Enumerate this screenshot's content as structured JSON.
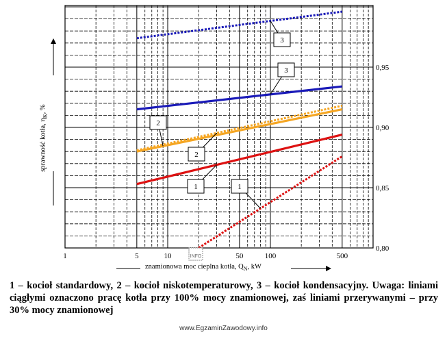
{
  "chart_data": {
    "type": "line",
    "x_scale": "log",
    "xlim": [
      1,
      1000
    ],
    "ylim": [
      0.8,
      0.98
    ],
    "x_tick_labels": [
      "1",
      "5",
      "10",
      "20",
      "50",
      "100",
      "500"
    ],
    "y_tick_labels": [
      "0,80",
      "0,85",
      "0,90",
      "0,95"
    ],
    "xlabel": "znamionowa moc cieplna kotła, Q",
    "xlabel_sub": "N",
    "xlabel_unit": ", kW",
    "ylabel": "sprawność kotła, η",
    "ylabel_sub": "K",
    "ylabel_unit": ", %",
    "grid": true,
    "series": [
      {
        "name": "1",
        "style": "solid",
        "color": "#dd1111",
        "x": [
          5,
          500
        ],
        "y": [
          0.853,
          0.894
        ]
      },
      {
        "name": "1",
        "style": "dotted",
        "color": "#dd1111",
        "x": [
          20,
          500
        ],
        "y": [
          0.8,
          0.876
        ]
      },
      {
        "name": "2",
        "style": "solid",
        "color": "#f5a623",
        "x": [
          5,
          500
        ],
        "y": [
          0.88,
          0.915
        ]
      },
      {
        "name": "2",
        "style": "dotted",
        "color": "#f5a623",
        "x": [
          5,
          500
        ],
        "y": [
          0.881,
          0.918
        ]
      },
      {
        "name": "3",
        "style": "solid",
        "color": "#1a1ab8",
        "x": [
          5,
          500
        ],
        "y": [
          0.915,
          0.934
        ]
      },
      {
        "name": "3",
        "style": "dotted",
        "color": "#1a1ab8",
        "x": [
          5,
          500
        ],
        "y": [
          0.974,
          0.996
        ]
      }
    ],
    "annotations": [
      {
        "text": "3",
        "box": [
          412,
          58
        ],
        "to": [
          5,
          500
        ]
      },
      {
        "text": "3",
        "box": [
          418,
          102
        ],
        "to": [
          4,
          5
        ]
      },
      {
        "text": "2",
        "box": [
          231,
          179
        ],
        "to": [
          2,
          3
        ]
      },
      {
        "text": "2",
        "box": [
          287,
          225
        ],
        "to": [
          2,
          3
        ]
      },
      {
        "text": "1",
        "box": [
          286,
          272
        ],
        "to": [
          0,
          1
        ]
      },
      {
        "text": "1",
        "box": [
          350,
          272
        ],
        "to": [
          1,
          2
        ]
      }
    ],
    "box_labels": [
      {
        "text": "3",
        "series": 5,
        "at_x": 100
      },
      {
        "text": "3",
        "series": 4,
        "at_x": 100
      },
      {
        "text": "2",
        "series": 2,
        "at_x": 9
      },
      {
        "text": "2",
        "series": 3,
        "at_x": 30
      },
      {
        "text": "1",
        "series": 0,
        "at_x": 30
      },
      {
        "text": "1",
        "series": 1,
        "at_x": 80
      }
    ]
  },
  "caption": "1 – kocioł standardowy, 2 – kocioł niskotemperaturowy, 3 – kocioł kondensacyjny. Uwaga: liniami ciągłymi oznaczono pracę kotła przy 100% mocy znamionowej, zaś liniami przerywanymi – przy 30% mocy znamionowej",
  "watermark": "www.EgzaminZawodowy.info",
  "stamp": "INFO"
}
